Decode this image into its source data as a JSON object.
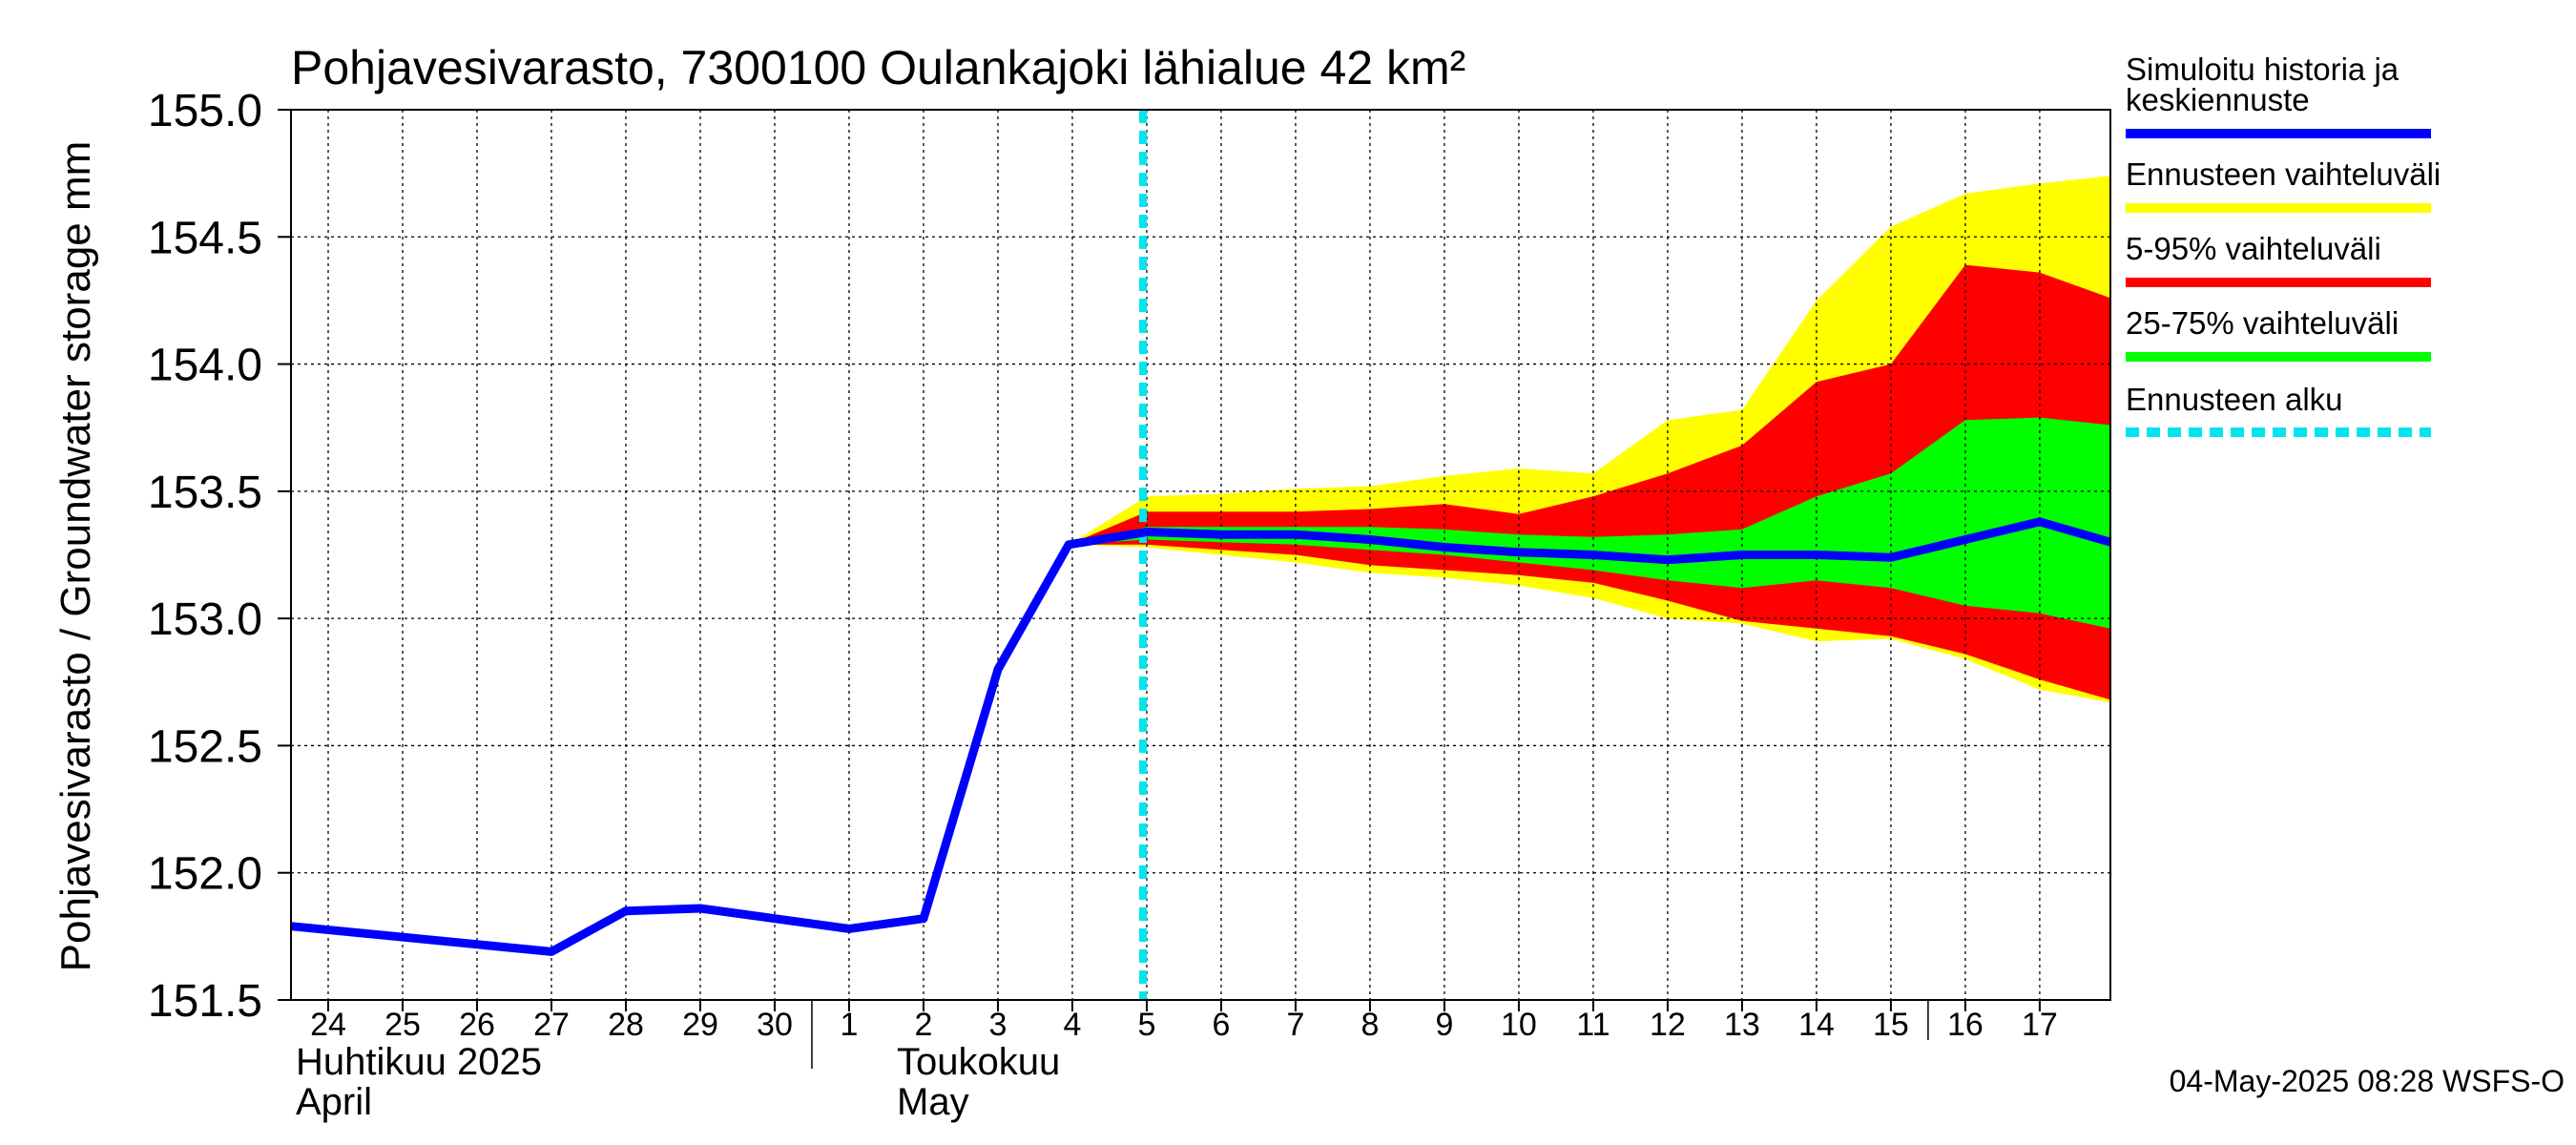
{
  "chart_data": {
    "type": "area",
    "title": "Pohjavesivarasto, 7300100 Oulankajoki lähialue 42 km²",
    "ylabel": "Pohjavesivarasto / Groundwater storage   mm",
    "ylim": [
      151.5,
      155.0
    ],
    "yticks": [
      "151.5",
      "152.0",
      "152.5",
      "153.0",
      "153.5",
      "154.0",
      "154.5",
      "155.0"
    ],
    "grid": true,
    "legend_position": "right",
    "x_day_labels": [
      "24",
      "25",
      "26",
      "27",
      "28",
      "29",
      "30",
      "1",
      "2",
      "3",
      "4",
      "5",
      "6",
      "7",
      "8",
      "9",
      "10",
      "11",
      "12",
      "13",
      "14",
      "15",
      "16",
      "17"
    ],
    "month_labels": [
      {
        "line1": "Huhtikuu  2025",
        "line2": "April"
      },
      {
        "line1": "Toukokuu",
        "line2": "May"
      }
    ],
    "forecast_start": 10.95,
    "series": [
      {
        "name": "Simuloitu historia ja keskiennuste",
        "color": "#0000ff",
        "x": [
          -0.5,
          3.0,
          4.0,
          5.0,
          6.0,
          7.0,
          8.0,
          9.0,
          9.95,
          11.0,
          12.0,
          13.0,
          14.0,
          15.0,
          16.0,
          17.0,
          18.0,
          19.0,
          20.0,
          21.0,
          22.0,
          23.0,
          23.95
        ],
        "y": [
          151.79,
          151.69,
          151.85,
          151.86,
          151.82,
          151.78,
          151.82,
          152.8,
          153.29,
          153.34,
          153.33,
          153.33,
          153.31,
          153.28,
          153.26,
          153.25,
          153.23,
          153.25,
          153.25,
          153.24,
          153.31,
          153.38,
          153.3
        ]
      }
    ],
    "bands": [
      {
        "name": "Ennusteen vaihteluväli",
        "color": "#ffff00",
        "x": [
          9.95,
          11.0,
          12.0,
          13.0,
          14.0,
          15.0,
          16.0,
          17.0,
          18.0,
          19.0,
          20.0,
          21.0,
          22.0,
          23.0,
          23.95
        ],
        "upper": [
          153.29,
          153.48,
          153.49,
          153.51,
          153.52,
          153.56,
          153.59,
          153.57,
          153.78,
          153.82,
          154.25,
          154.54,
          154.67,
          154.71,
          154.74
        ],
        "lower": [
          153.29,
          153.28,
          153.25,
          153.22,
          153.18,
          153.16,
          153.13,
          153.08,
          153.0,
          152.98,
          152.91,
          152.92,
          152.84,
          152.72,
          152.67
        ]
      },
      {
        "name": "5-95% vaihteluväli",
        "color": "#ff0000",
        "x": [
          9.95,
          11.0,
          12.0,
          13.0,
          14.0,
          15.0,
          16.0,
          17.0,
          18.0,
          19.0,
          20.0,
          21.0,
          22.0,
          23.0,
          23.95
        ],
        "upper": [
          153.29,
          153.42,
          153.42,
          153.42,
          153.43,
          153.45,
          153.41,
          153.48,
          153.57,
          153.68,
          153.93,
          154.0,
          154.39,
          154.36,
          154.26
        ],
        "lower": [
          153.29,
          153.29,
          153.27,
          153.25,
          153.21,
          153.19,
          153.17,
          153.14,
          153.07,
          152.99,
          152.96,
          152.93,
          152.86,
          152.76,
          152.68
        ]
      },
      {
        "name": "25-75% vaihteluväli",
        "color": "#00ff00",
        "x": [
          9.95,
          11.0,
          12.0,
          13.0,
          14.0,
          15.0,
          16.0,
          17.0,
          18.0,
          19.0,
          20.0,
          21.0,
          22.0,
          23.0,
          23.95
        ],
        "upper": [
          153.29,
          153.36,
          153.36,
          153.36,
          153.36,
          153.35,
          153.33,
          153.32,
          153.33,
          153.35,
          153.48,
          153.57,
          153.78,
          153.79,
          153.76
        ],
        "lower": [
          153.29,
          153.31,
          153.3,
          153.29,
          153.27,
          153.25,
          153.22,
          153.19,
          153.15,
          153.12,
          153.15,
          153.12,
          153.05,
          153.02,
          152.96
        ]
      }
    ],
    "legend_items": [
      {
        "key": "hist",
        "lines": [
          "Simuloitu historia ja",
          "keskiennuste"
        ],
        "color": "#0000ff",
        "style": "solid"
      },
      {
        "key": "range",
        "lines": [
          "Ennusteen vaihteluväli"
        ],
        "color": "#ffff00",
        "style": "solid"
      },
      {
        "key": "p5_95",
        "lines": [
          "5-95% vaihteluväli"
        ],
        "color": "#ff0000",
        "style": "solid"
      },
      {
        "key": "p25_75",
        "lines": [
          "25-75% vaihteluväli"
        ],
        "color": "#00ff00",
        "style": "solid"
      },
      {
        "key": "start",
        "lines": [
          "Ennusteen alku"
        ],
        "color": "#00e5ee",
        "style": "dashed"
      }
    ],
    "timestamp": "04-May-2025 08:28 WSFS-O"
  }
}
